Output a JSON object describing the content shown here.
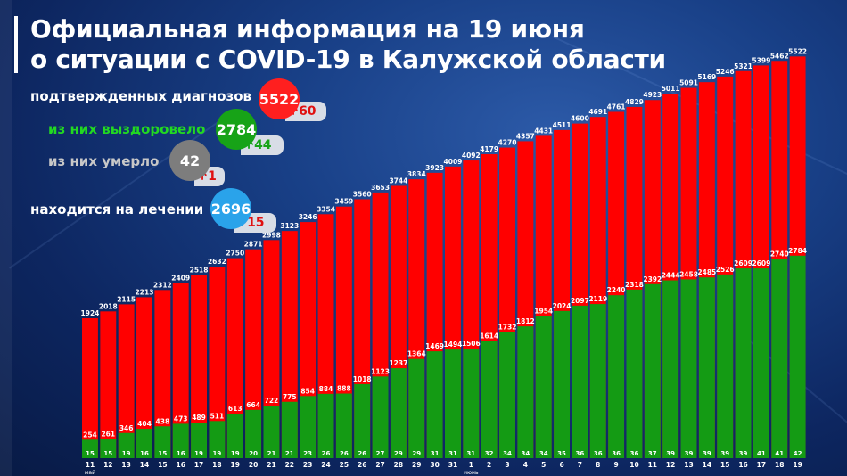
{
  "title_line1": "Официальная информация на 19 июня",
  "title_line2": "о ситуации с COVID-19 в Калужской области",
  "stats": {
    "confirmed": {
      "label": "подтвержденных диагнозов",
      "value": "5522",
      "delta": "60",
      "color": "#ff1f1f",
      "label_color": "#ffffff"
    },
    "recovered": {
      "label": "из них выздоровело",
      "value": "2784",
      "delta": "44",
      "color": "#17a317",
      "label_color": "#22d822"
    },
    "died": {
      "label": "из них умерло",
      "value": "42",
      "delta": "1",
      "color": "#7d7d7d",
      "label_color": "#c8c8c8"
    },
    "treatment": {
      "label": "находится на лечении",
      "value": "2696",
      "delta": "15",
      "color": "#2aa3ea",
      "label_color": "#ffffff"
    }
  },
  "delta_arrow_colors": {
    "confirmed": "#e01010",
    "recovered": "#17a317",
    "died": "#e01010",
    "treatment": "#e01010"
  },
  "chart_data": {
    "type": "bar",
    "title": "",
    "xlabel": "",
    "ylabel": "",
    "ylim": [
      0,
      5600
    ],
    "categories": [
      "11",
      "12",
      "13",
      "14",
      "15",
      "16",
      "17",
      "18",
      "19",
      "20",
      "21",
      "22",
      "23",
      "24",
      "25",
      "26",
      "27",
      "28",
      "29",
      "30",
      "31",
      "1",
      "2",
      "3",
      "4",
      "5",
      "6",
      "7",
      "8",
      "9",
      "10",
      "11",
      "12",
      "13",
      "14",
      "15",
      "16",
      "17",
      "18",
      "19"
    ],
    "month_labels": [
      {
        "index": 0,
        "text": "май"
      },
      {
        "index": 21,
        "text": "июнь"
      }
    ],
    "series": [
      {
        "name": "",
        "color": "#ff0000",
        "values": [
          1924,
          2018,
          2115,
          2213,
          2312,
          2409,
          2518,
          2632,
          2750,
          2871,
          2998,
          3123,
          3246,
          3354,
          3459,
          3560,
          3653,
          3744,
          3834,
          3923,
          4009,
          4092,
          4179,
          4270,
          4357,
          4431,
          4511,
          4600,
          4691,
          4761,
          4829,
          4923,
          5011,
          5091,
          5169,
          5246,
          5321,
          5399,
          5462,
          5522
        ]
      },
      {
        "name": "",
        "color": "#149b14",
        "values": [
          254,
          261,
          346,
          404,
          438,
          473,
          489,
          511,
          613,
          664,
          722,
          775,
          854,
          884,
          888,
          1018,
          1123,
          1237,
          1364,
          1469,
          1494,
          1506,
          1614,
          1732,
          1812,
          1954,
          2024,
          2097,
          2119,
          2240,
          2318,
          2392,
          2444,
          2458,
          2485,
          2526,
          2609,
          2609,
          2740,
          2784
        ]
      },
      {
        "name": "",
        "color": "#ffffff",
        "values": [
          15,
          15,
          19,
          16,
          15,
          16,
          19,
          19,
          19,
          20,
          21,
          21,
          23,
          26,
          26,
          26,
          27,
          29,
          29,
          31,
          31,
          31,
          32,
          34,
          34,
          34,
          35,
          36,
          36,
          36,
          36,
          37,
          39,
          39,
          39,
          39,
          39,
          41,
          41,
          42
        ]
      }
    ]
  }
}
